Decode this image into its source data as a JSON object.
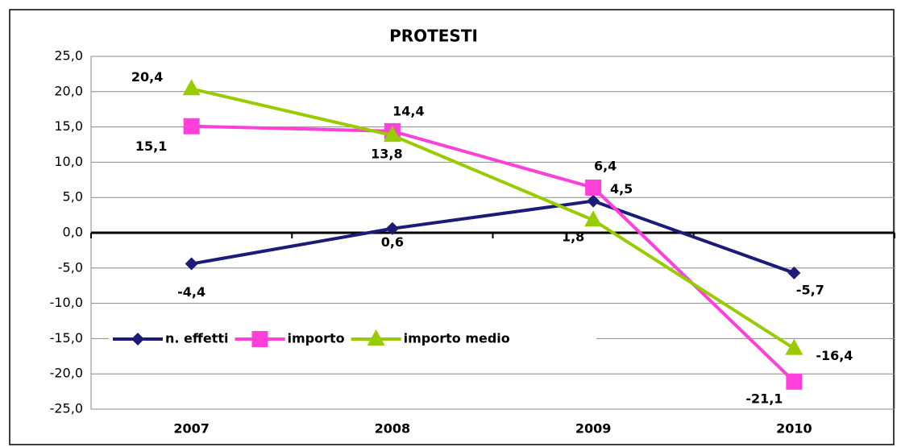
{
  "chart_data": {
    "type": "line",
    "title": "PROTESTI",
    "categories": [
      "2007",
      "2008",
      "2009",
      "2010"
    ],
    "series": [
      {
        "name": "n. effetti",
        "color": "#1c1c78",
        "marker": "diamond",
        "values": [
          -4.4,
          0.6,
          4.5,
          -5.7
        ],
        "value_labels": [
          "-4,4",
          "0,6",
          "4,5",
          "-5,7"
        ]
      },
      {
        "name": "importo",
        "color": "#ff3fd9",
        "marker": "square",
        "values": [
          15.1,
          14.4,
          6.4,
          -21.1
        ],
        "value_labels": [
          "15,1",
          "14,4",
          "6,4",
          "-21,1"
        ]
      },
      {
        "name": "importo medio",
        "color": "#99cc00",
        "marker": "triangle",
        "values": [
          20.4,
          13.8,
          1.8,
          -16.4
        ],
        "value_labels": [
          "20,4",
          "13,8",
          "1,8",
          "-16,4"
        ]
      }
    ],
    "ylim": [
      -25,
      25
    ],
    "yticks": [
      {
        "value": -25,
        "label": "-25,0"
      },
      {
        "value": -20,
        "label": "-20,0"
      },
      {
        "value": -15,
        "label": "-15,0"
      },
      {
        "value": -10,
        "label": "-10,0"
      },
      {
        "value": -5,
        "label": "-5,0"
      },
      {
        "value": 0,
        "label": "0,0"
      },
      {
        "value": 5,
        "label": "5,0"
      },
      {
        "value": 10,
        "label": "10,0"
      },
      {
        "value": 15,
        "label": "15,0"
      },
      {
        "value": 20,
        "label": "20,0"
      },
      {
        "value": 25,
        "label": "25,0"
      }
    ],
    "grid": true
  }
}
